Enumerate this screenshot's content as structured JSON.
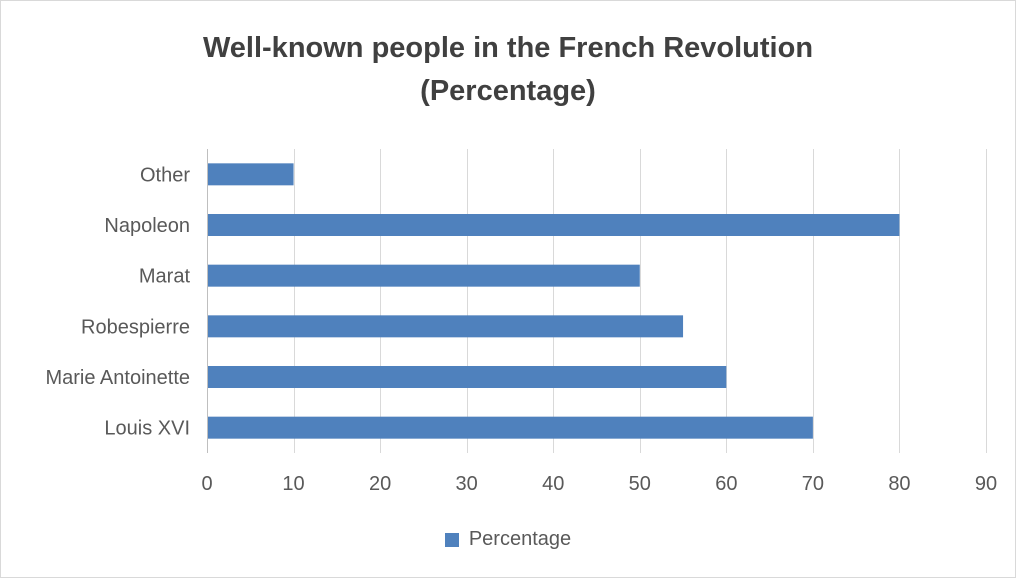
{
  "chart_data": {
    "type": "bar",
    "orientation": "horizontal",
    "title": [
      "Well-known people in the French Revolution",
      "(Percentage)"
    ],
    "categories": [
      "Louis XVI",
      "Marie Antoinette",
      "Robespierre",
      "Marat",
      "Napoleon",
      "Other"
    ],
    "series": [
      {
        "name": "Percentage",
        "values": [
          70,
          60,
          55,
          50,
          80,
          10
        ],
        "color": "#4f81bd"
      }
    ],
    "xlim": [
      0,
      90
    ],
    "xticks": [
      0,
      10,
      20,
      30,
      40,
      50,
      60,
      70,
      80,
      90
    ],
    "grid": true,
    "legend": "bottom"
  }
}
